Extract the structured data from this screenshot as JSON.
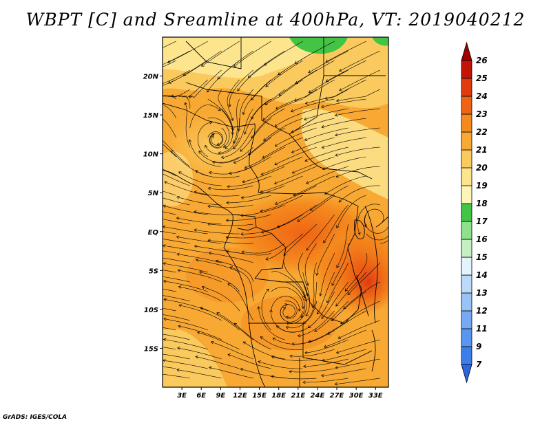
{
  "title": "WBPT [C] and Sreamline at 400hPa, VT: 2019040212",
  "credit": "GrADS: IGES/COLA",
  "map": {
    "lon_range": [
      0,
      35
    ],
    "lat_range": [
      -20,
      25
    ],
    "lon_ticks": [
      {
        "value": 3,
        "label": "3E"
      },
      {
        "value": 6,
        "label": "6E"
      },
      {
        "value": 9,
        "label": "9E"
      },
      {
        "value": 12,
        "label": "12E"
      },
      {
        "value": 15,
        "label": "15E"
      },
      {
        "value": 18,
        "label": "18E"
      },
      {
        "value": 21,
        "label": "21E"
      },
      {
        "value": 24,
        "label": "24E"
      },
      {
        "value": 27,
        "label": "27E"
      },
      {
        "value": 30,
        "label": "30E"
      },
      {
        "value": 33,
        "label": "33E"
      }
    ],
    "lat_ticks": [
      {
        "value": 20,
        "label": "20N"
      },
      {
        "value": 15,
        "label": "15N"
      },
      {
        "value": 10,
        "label": "10N"
      },
      {
        "value": 5,
        "label": "5N"
      },
      {
        "value": 0,
        "label": "EQ"
      },
      {
        "value": -5,
        "label": "5S"
      },
      {
        "value": -10,
        "label": "10S"
      },
      {
        "value": -15,
        "label": "15S"
      }
    ]
  },
  "colorbar": {
    "labels": [
      "7",
      "9",
      "11",
      "12",
      "13",
      "14",
      "15",
      "16",
      "17",
      "18",
      "19",
      "20",
      "21",
      "22",
      "23",
      "24",
      "25",
      "26"
    ],
    "colors": [
      "#2b68e0",
      "#3d7fea",
      "#5a95ef",
      "#76aaf3",
      "#98c3f7",
      "#bcd9fa",
      "#e4f4fc",
      "#c6f0c1",
      "#8ee08a",
      "#43c444",
      "#fdf6b8",
      "#fde58e",
      "#fbca5e",
      "#f8a934",
      "#f48a1e",
      "#ef6414",
      "#e03a10",
      "#c41408",
      "#a00000"
    ]
  },
  "chart_data": {
    "type": "heatmap",
    "title": "WBPT [C] and Sreamline at 400hPa, VT: 2019040212",
    "xlabel": "",
    "ylabel": "",
    "xlim": [
      0,
      35
    ],
    "ylim": [
      -20,
      25
    ],
    "field_regions": [
      {
        "lon": [
          0,
          35
        ],
        "lat": [
          -20,
          25
        ],
        "wbpt": 21
      },
      {
        "lon": [
          0,
          20
        ],
        "lat": [
          18,
          25
        ],
        "wbpt": 19.5
      },
      {
        "lon": [
          20,
          35
        ],
        "lat": [
          10,
          22
        ],
        "wbpt": 20
      },
      {
        "lon": [
          20,
          24
        ],
        "lat": [
          23,
          25
        ],
        "wbpt": 17
      },
      {
        "lon": [
          32,
          35
        ],
        "lat": [
          23,
          25
        ],
        "wbpt": 17
      },
      {
        "lon": [
          13,
          33
        ],
        "lat": [
          -6,
          5
        ],
        "wbpt": 22
      },
      {
        "lon": [
          26,
          35
        ],
        "lat": [
          -10,
          -2
        ],
        "wbpt": 23
      },
      {
        "lon": [
          0,
          10
        ],
        "lat": [
          -20,
          -12
        ],
        "wbpt": 20
      }
    ]
  }
}
